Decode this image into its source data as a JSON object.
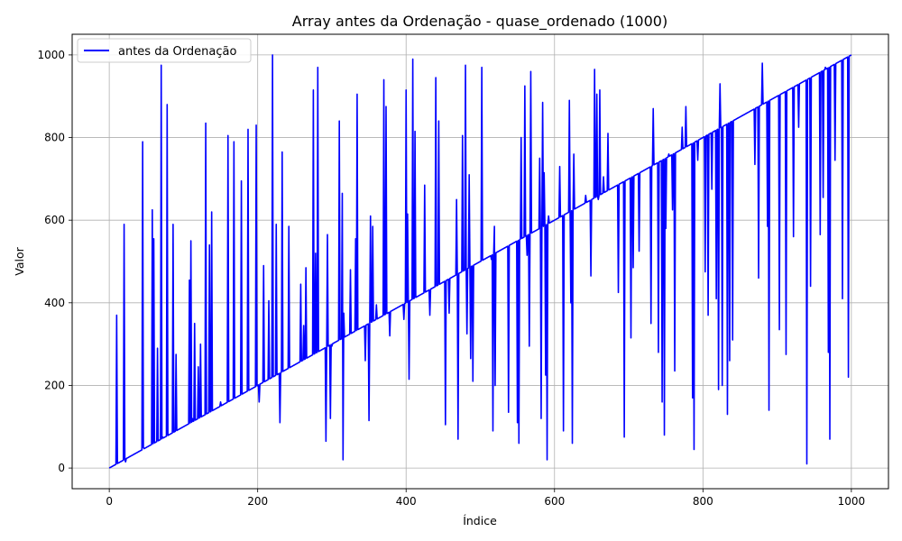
{
  "chart_data": {
    "type": "line",
    "title": "Array antes da Ordenação - quase_ordenado (1000)",
    "xlabel": "Índice",
    "ylabel": "Valor",
    "xlim": [
      -50,
      1050
    ],
    "ylim": [
      -50,
      1050
    ],
    "x_ticks": [
      0,
      200,
      400,
      600,
      800,
      1000
    ],
    "y_ticks": [
      0,
      200,
      400,
      600,
      800,
      1000
    ],
    "grid": true,
    "legend_position": "top-left",
    "series": [
      {
        "name": "antes da Ordenação",
        "color": "#0000ff",
        "baseline": {
          "description": "values follow y = x except at the spikes listed",
          "start": [
            0,
            0
          ],
          "end": [
            1000,
            1000
          ]
        },
        "spikes": [
          [
            10,
            370
          ],
          [
            20,
            590
          ],
          [
            22,
            15
          ],
          [
            45,
            790
          ],
          [
            46,
            50
          ],
          [
            58,
            625
          ],
          [
            60,
            555
          ],
          [
            65,
            290
          ],
          [
            70,
            975
          ],
          [
            72,
            75
          ],
          [
            78,
            880
          ],
          [
            86,
            590
          ],
          [
            90,
            275
          ],
          [
            108,
            455
          ],
          [
            110,
            550
          ],
          [
            112,
            120
          ],
          [
            115,
            350
          ],
          [
            120,
            245
          ],
          [
            123,
            300
          ],
          [
            130,
            835
          ],
          [
            135,
            540
          ],
          [
            138,
            620
          ],
          [
            150,
            160
          ],
          [
            160,
            805
          ],
          [
            168,
            790
          ],
          [
            178,
            695
          ],
          [
            187,
            820
          ],
          [
            198,
            830
          ],
          [
            202,
            160
          ],
          [
            208,
            490
          ],
          [
            215,
            405
          ],
          [
            220,
            1000
          ],
          [
            225,
            590
          ],
          [
            230,
            110
          ],
          [
            233,
            765
          ],
          [
            242,
            585
          ],
          [
            258,
            445
          ],
          [
            262,
            345
          ],
          [
            265,
            485
          ],
          [
            275,
            915
          ],
          [
            278,
            520
          ],
          [
            281,
            970
          ],
          [
            292,
            65
          ],
          [
            294,
            565
          ],
          [
            298,
            120
          ],
          [
            300,
            295
          ],
          [
            310,
            840
          ],
          [
            314,
            665
          ],
          [
            315,
            20
          ],
          [
            316,
            375
          ],
          [
            325,
            480
          ],
          [
            332,
            555
          ],
          [
            334,
            905
          ],
          [
            345,
            260
          ],
          [
            350,
            115
          ],
          [
            352,
            610
          ],
          [
            355,
            585
          ],
          [
            360,
            395
          ],
          [
            370,
            940
          ],
          [
            373,
            875
          ],
          [
            378,
            320
          ],
          [
            397,
            360
          ],
          [
            400,
            915
          ],
          [
            402,
            615
          ],
          [
            404,
            215
          ],
          [
            409,
            990
          ],
          [
            412,
            815
          ],
          [
            425,
            685
          ],
          [
            432,
            370
          ],
          [
            440,
            945
          ],
          [
            444,
            840
          ],
          [
            453,
            105
          ],
          [
            458,
            375
          ],
          [
            468,
            650
          ],
          [
            470,
            70
          ],
          [
            476,
            805
          ],
          [
            480,
            975
          ],
          [
            482,
            325
          ],
          [
            485,
            710
          ],
          [
            487,
            265
          ],
          [
            490,
            210
          ],
          [
            502,
            970
          ],
          [
            515,
            505
          ],
          [
            517,
            90
          ],
          [
            519,
            585
          ],
          [
            520,
            200
          ],
          [
            538,
            135
          ],
          [
            550,
            110
          ],
          [
            552,
            60
          ],
          [
            555,
            800
          ],
          [
            560,
            925
          ],
          [
            563,
            515
          ],
          [
            566,
            295
          ],
          [
            568,
            960
          ],
          [
            580,
            750
          ],
          [
            582,
            120
          ],
          [
            584,
            885
          ],
          [
            586,
            715
          ],
          [
            588,
            225
          ],
          [
            590,
            20
          ],
          [
            592,
            610
          ],
          [
            607,
            730
          ],
          [
            612,
            90
          ],
          [
            620,
            890
          ],
          [
            622,
            400
          ],
          [
            624,
            60
          ],
          [
            626,
            760
          ],
          [
            642,
            660
          ],
          [
            649,
            465
          ],
          [
            654,
            965
          ],
          [
            657,
            905
          ],
          [
            659,
            650
          ],
          [
            661,
            915
          ],
          [
            666,
            705
          ],
          [
            672,
            810
          ],
          [
            686,
            425
          ],
          [
            694,
            75
          ],
          [
            703,
            315
          ],
          [
            706,
            485
          ],
          [
            714,
            525
          ],
          [
            730,
            350
          ],
          [
            733,
            870
          ],
          [
            740,
            280
          ],
          [
            745,
            160
          ],
          [
            748,
            80
          ],
          [
            750,
            580
          ],
          [
            754,
            760
          ],
          [
            759,
            625
          ],
          [
            762,
            235
          ],
          [
            772,
            825
          ],
          [
            777,
            875
          ],
          [
            786,
            170
          ],
          [
            788,
            45
          ],
          [
            793,
            745
          ],
          [
            803,
            475
          ],
          [
            807,
            370
          ],
          [
            812,
            675
          ],
          [
            818,
            410
          ],
          [
            821,
            190
          ],
          [
            823,
            930
          ],
          [
            826,
            200
          ],
          [
            833,
            130
          ],
          [
            836,
            260
          ],
          [
            840,
            310
          ],
          [
            870,
            735
          ],
          [
            875,
            460
          ],
          [
            880,
            980
          ],
          [
            887,
            585
          ],
          [
            889,
            140
          ],
          [
            903,
            335
          ],
          [
            912,
            275
          ],
          [
            922,
            560
          ],
          [
            929,
            825
          ],
          [
            940,
            10
          ],
          [
            945,
            440
          ],
          [
            958,
            565
          ],
          [
            962,
            655
          ],
          [
            965,
            970
          ],
          [
            969,
            280
          ],
          [
            971,
            70
          ],
          [
            978,
            745
          ],
          [
            988,
            410
          ],
          [
            996,
            220
          ]
        ]
      }
    ]
  }
}
